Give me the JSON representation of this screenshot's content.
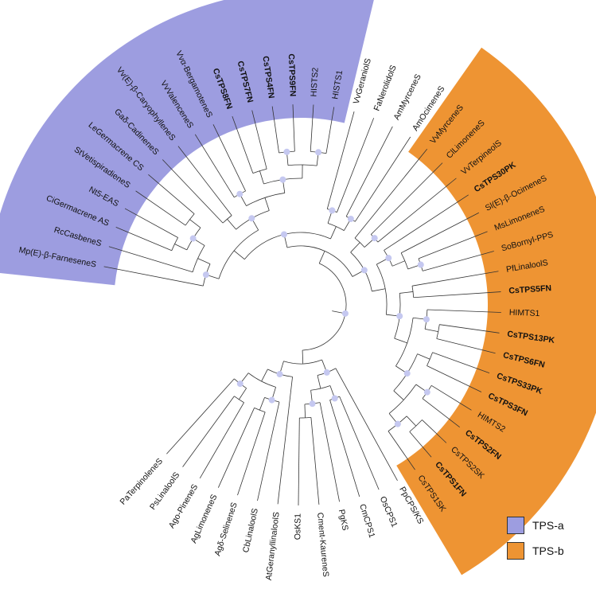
{
  "figure": {
    "colors": {
      "tps_a": "#9d9de0",
      "tps_b": "#ee9433",
      "branch": "#333333",
      "node": "#c5c8f0"
    }
  },
  "legend": [
    {
      "label": "TPS-a",
      "color": "#9d9de0"
    },
    {
      "label": "TPS-b",
      "color": "#ee9433"
    }
  ],
  "taxa": [
    {
      "label": "HISTS1",
      "bold": false,
      "clade": "a"
    },
    {
      "label": "HISTS2",
      "bold": false,
      "clade": "a"
    },
    {
      "label": "CsTPS9FN",
      "bold": true,
      "clade": "a"
    },
    {
      "label": "CsTPS4FN",
      "bold": true,
      "clade": "a"
    },
    {
      "label": "CsTPS7FN",
      "bold": true,
      "clade": "a"
    },
    {
      "label": "CsTPS8FN",
      "bold": true,
      "clade": "a"
    },
    {
      "label": "Vvα-BergamoteneS",
      "bold": false,
      "clade": "a"
    },
    {
      "label": "VvValenceneS",
      "bold": false,
      "clade": "a"
    },
    {
      "label": "Vv(E)-β-CaryophylleneS",
      "bold": false,
      "clade": "a"
    },
    {
      "label": "Gaδ-CadineneS",
      "bold": false,
      "clade": "a"
    },
    {
      "label": "LeGermacrene CS",
      "bold": false,
      "clade": "a"
    },
    {
      "label": "StVetispiradieneS",
      "bold": false,
      "clade": "a"
    },
    {
      "label": "Nt5-EAS",
      "bold": false,
      "clade": "a"
    },
    {
      "label": "CiGermacrene AS",
      "bold": false,
      "clade": "a"
    },
    {
      "label": "RcCasbeneS",
      "bold": false,
      "clade": "a"
    },
    {
      "label": "Mp(E)-β-FarneseneS",
      "bold": false,
      "clade": "a"
    },
    {
      "label": "PaTerpinoleneS",
      "bold": false,
      "clade": ""
    },
    {
      "label": "PsLinaloolS",
      "bold": false,
      "clade": ""
    },
    {
      "label": "Ago-PineneS",
      "bold": false,
      "clade": ""
    },
    {
      "label": "AgLimoneneS",
      "bold": false,
      "clade": ""
    },
    {
      "label": "Agδ-SelineneS",
      "bold": false,
      "clade": ""
    },
    {
      "label": "CbLinaloolS",
      "bold": false,
      "clade": ""
    },
    {
      "label": "AtGeranyllinaloolS",
      "bold": false,
      "clade": ""
    },
    {
      "label": "OsKS1",
      "bold": false,
      "clade": ""
    },
    {
      "label": "Cment-KaureneS",
      "bold": false,
      "clade": ""
    },
    {
      "label": "PgKS",
      "bold": false,
      "clade": ""
    },
    {
      "label": "CmCPS1",
      "bold": false,
      "clade": ""
    },
    {
      "label": "OsCPS1",
      "bold": false,
      "clade": ""
    },
    {
      "label": "PpCPS/KS",
      "bold": false,
      "clade": ""
    },
    {
      "label": "CsTPS1SK",
      "bold": false,
      "clade": "b"
    },
    {
      "label": "CsTPS1FN",
      "bold": true,
      "clade": "b"
    },
    {
      "label": "CsTPS2SK",
      "bold": false,
      "clade": "b"
    },
    {
      "label": "CsTPS2FN",
      "bold": true,
      "clade": "b"
    },
    {
      "label": "HIMTS2",
      "bold": false,
      "clade": "b"
    },
    {
      "label": "CsTPS3FN",
      "bold": true,
      "clade": "b"
    },
    {
      "label": "CsTPS33PK",
      "bold": true,
      "clade": "b"
    },
    {
      "label": "CsTPS6FN",
      "bold": true,
      "clade": "b"
    },
    {
      "label": "CsTPS13PK",
      "bold": true,
      "clade": "b"
    },
    {
      "label": "HIMTS1",
      "bold": false,
      "clade": "b"
    },
    {
      "label": "CsTPS5FN",
      "bold": true,
      "clade": "b"
    },
    {
      "label": "PfLinaloolS",
      "bold": false,
      "clade": "b"
    },
    {
      "label": "SoBornyl-PPS",
      "bold": false,
      "clade": "b"
    },
    {
      "label": "MsLimoneneS",
      "bold": false,
      "clade": "b"
    },
    {
      "label": "Sl(E)-β-OcimeneS",
      "bold": false,
      "clade": "b"
    },
    {
      "label": "CsTPS30PK",
      "bold": true,
      "clade": "b"
    },
    {
      "label": "VvTerpineolS",
      "bold": false,
      "clade": "b"
    },
    {
      "label": "ClLimoneneS",
      "bold": false,
      "clade": "b"
    },
    {
      "label": "VvMyrceneS",
      "bold": false,
      "clade": "b"
    },
    {
      "label": "AmOcimeneS",
      "bold": false,
      "clade": ""
    },
    {
      "label": "AmMyrceneS",
      "bold": false,
      "clade": ""
    },
    {
      "label": "FaNerolidolS",
      "bold": false,
      "clade": ""
    },
    {
      "label": "VvGeraniolS",
      "bold": false,
      "clade": ""
    }
  ]
}
